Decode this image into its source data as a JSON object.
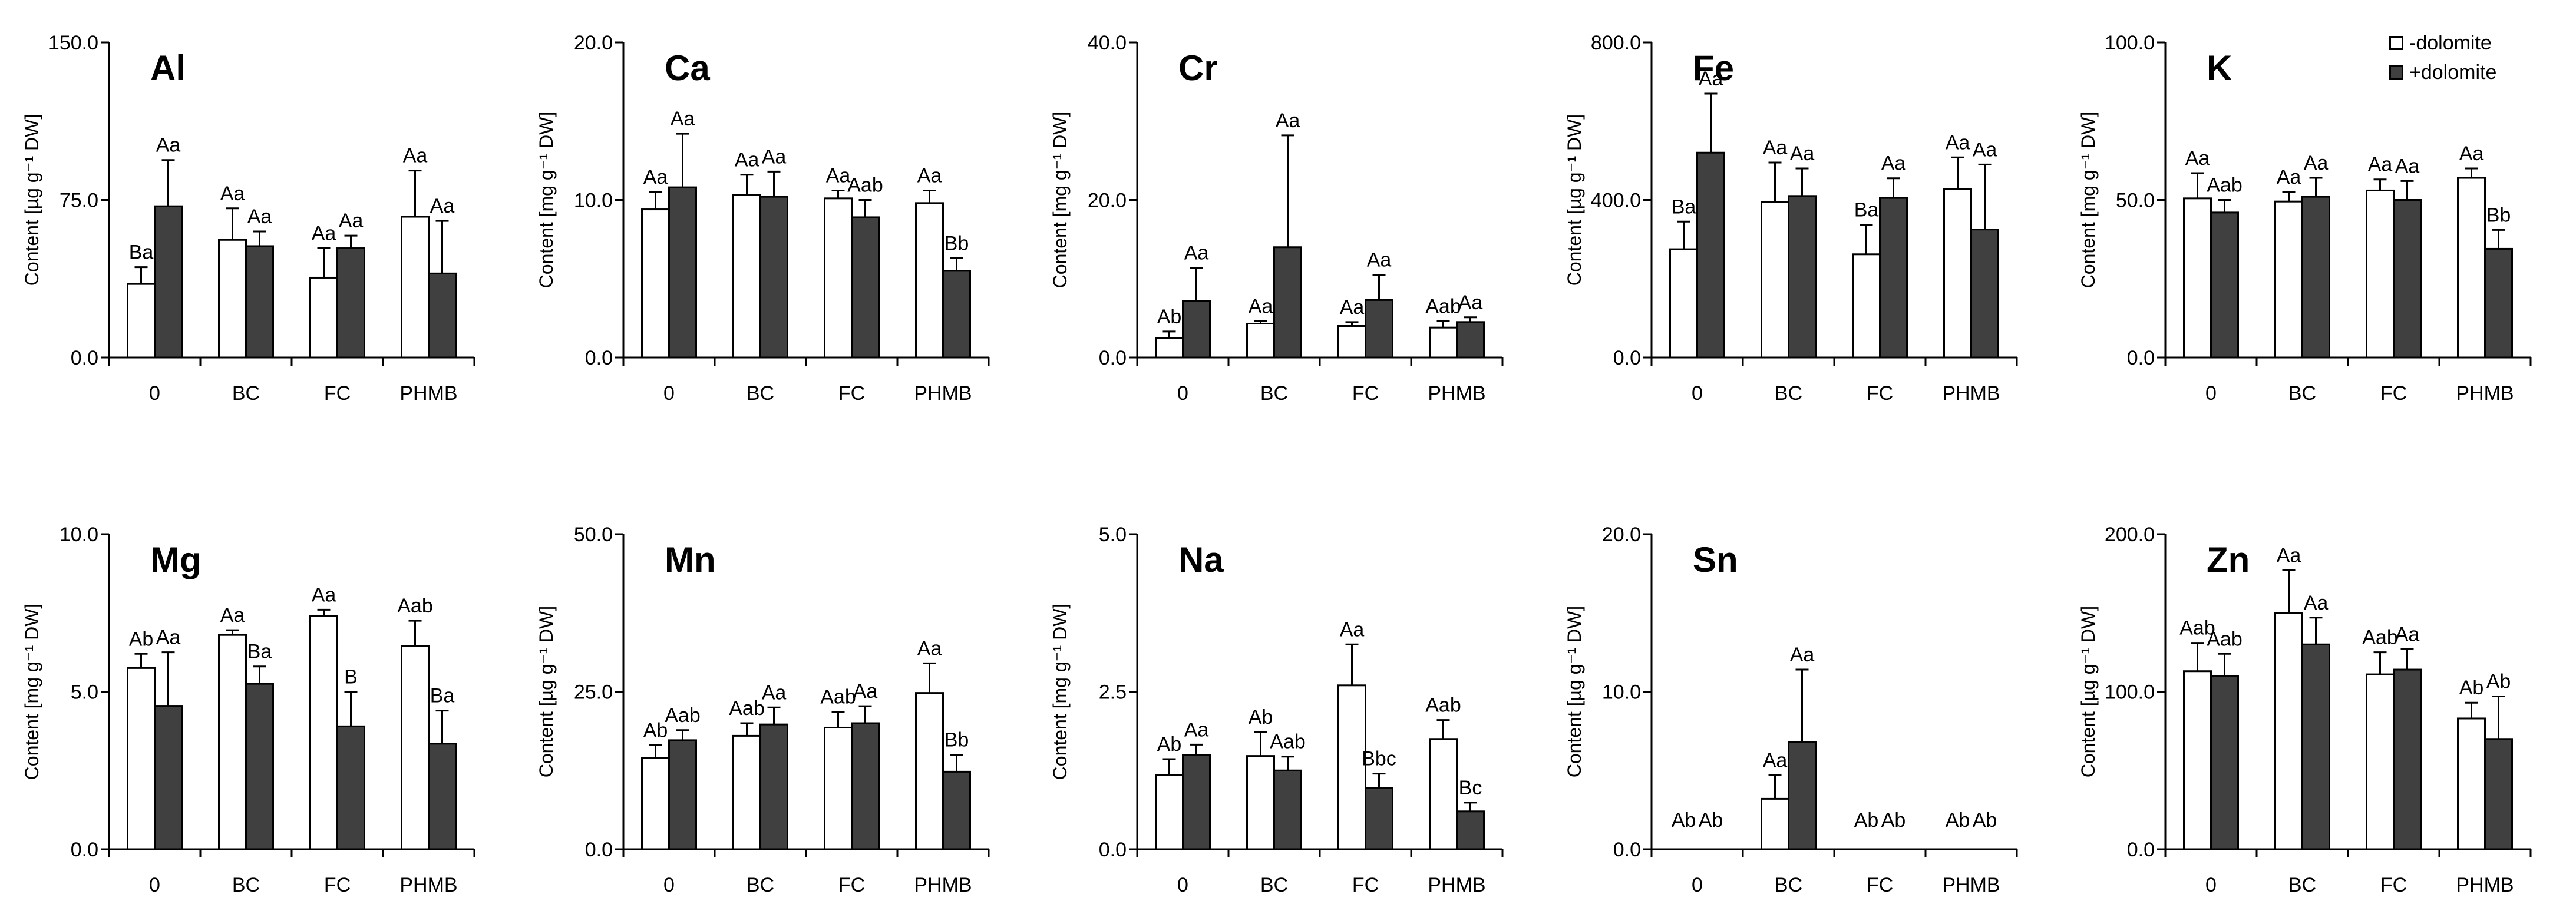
{
  "legend": [
    {
      "label": "-dolomite",
      "color": "#ffffff"
    },
    {
      "label": "+dolomite",
      "color": "#404040"
    }
  ],
  "colors": {
    "minus": "#ffffff",
    "plus": "#404040",
    "axis": "#000000"
  },
  "chart_data": [
    {
      "type": "bar",
      "title": "Al",
      "ylabel": "Content [µg g⁻¹ DW]",
      "ylim": [
        0,
        150
      ],
      "yticks": [
        "0.0",
        "75.0",
        "150.0"
      ],
      "categories": [
        "0",
        "BC",
        "FC",
        "PHMB"
      ],
      "series": [
        {
          "name": "-dolomite",
          "values": [
            35,
            56,
            38,
            67
          ],
          "errors": [
            8,
            15,
            14,
            22
          ],
          "letters": [
            "Ba",
            "Aa",
            "Aa",
            "Aa"
          ]
        },
        {
          "name": "+dolomite",
          "values": [
            72,
            53,
            52,
            40
          ],
          "errors": [
            22,
            7,
            6,
            25
          ],
          "letters": [
            "Aa",
            "Aa",
            "Aa",
            "Aa"
          ]
        }
      ]
    },
    {
      "type": "bar",
      "title": "Ca",
      "ylabel": "Content [mg g⁻¹ DW]",
      "ylim": [
        0,
        20
      ],
      "yticks": [
        "0.0",
        "10.0",
        "20.0"
      ],
      "categories": [
        "0",
        "BC",
        "FC",
        "PHMB"
      ],
      "series": [
        {
          "name": "-dolomite",
          "values": [
            9.4,
            10.3,
            10.1,
            9.8
          ],
          "errors": [
            1.1,
            1.3,
            0.5,
            0.8
          ],
          "letters": [
            "Aa",
            "Aa",
            "Aa",
            "Aa"
          ]
        },
        {
          "name": "+dolomite",
          "values": [
            10.8,
            10.2,
            8.9,
            5.5
          ],
          "errors": [
            3.4,
            1.6,
            1.1,
            0.8
          ],
          "letters": [
            "Aa",
            "Aa",
            "Aab",
            "Bb"
          ]
        }
      ]
    },
    {
      "type": "bar",
      "title": "Cr",
      "ylabel": "Content [mg g⁻¹ DW]",
      "ylim": [
        0,
        40
      ],
      "yticks": [
        "0.0",
        "20.0",
        "40.0"
      ],
      "categories": [
        "0",
        "BC",
        "FC",
        "PHMB"
      ],
      "series": [
        {
          "name": "-dolomite",
          "values": [
            2.5,
            4.3,
            4.0,
            3.8
          ],
          "errors": [
            0.8,
            0.3,
            0.5,
            0.8
          ],
          "letters": [
            "Ab",
            "Aa",
            "Aa",
            "Aab"
          ]
        },
        {
          "name": "+dolomite",
          "values": [
            7.2,
            14.0,
            7.3,
            4.5
          ],
          "errors": [
            4.2,
            14.2,
            3.2,
            0.6
          ],
          "letters": [
            "Aa",
            "Aa",
            "Aa",
            "Aa"
          ]
        }
      ]
    },
    {
      "type": "bar",
      "title": "Fe",
      "ylabel": "Content [µg g⁻¹ DW]",
      "ylim": [
        0,
        800
      ],
      "yticks": [
        "0.0",
        "400.0",
        "800.0"
      ],
      "categories": [
        "0",
        "BC",
        "FC",
        "PHMB"
      ],
      "series": [
        {
          "name": "-dolomite",
          "values": [
            275,
            395,
            262,
            428
          ],
          "errors": [
            70,
            100,
            75,
            80
          ],
          "letters": [
            "Ba",
            "Aa",
            "Ba",
            "Aa"
          ]
        },
        {
          "name": "+dolomite",
          "values": [
            520,
            410,
            405,
            325
          ],
          "errors": [
            150,
            70,
            50,
            165
          ],
          "letters": [
            "Aa",
            "Aa",
            "Aa",
            "Aa"
          ]
        }
      ]
    },
    {
      "type": "bar",
      "title": "K",
      "ylabel": "Content [mg g⁻¹ DW]",
      "ylim": [
        0,
        100
      ],
      "yticks": [
        "0.0",
        "50.0",
        "100.0"
      ],
      "categories": [
        "0",
        "BC",
        "FC",
        "PHMB"
      ],
      "series": [
        {
          "name": "-dolomite",
          "values": [
            50.5,
            49.5,
            53,
            57
          ],
          "errors": [
            8,
            3,
            3.5,
            3
          ],
          "letters": [
            "Aa",
            "Aa",
            "Aa",
            "Aa"
          ]
        },
        {
          "name": "+dolomite",
          "values": [
            46,
            51,
            50,
            34.5
          ],
          "errors": [
            4,
            6,
            6,
            6
          ],
          "letters": [
            "Aab",
            "Aa",
            "Aa",
            "Bb"
          ]
        }
      ]
    },
    {
      "type": "bar",
      "title": "Mg",
      "ylabel": "Content [mg g⁻¹ DW]",
      "ylim": [
        0,
        10
      ],
      "yticks": [
        "0.0",
        "5.0",
        "10.0"
      ],
      "categories": [
        "0",
        "BC",
        "FC",
        "PHMB"
      ],
      "series": [
        {
          "name": "-dolomite",
          "values": [
            5.75,
            6.8,
            7.4,
            6.45
          ],
          "errors": [
            0.45,
            0.15,
            0.2,
            0.8
          ],
          "letters": [
            "Ab",
            "Aa",
            "Aa",
            "Aab"
          ]
        },
        {
          "name": "+dolomite",
          "values": [
            4.55,
            5.25,
            3.9,
            3.35
          ],
          "errors": [
            1.7,
            0.55,
            1.1,
            1.05
          ],
          "letters": [
            "Aa",
            "Ba",
            "B",
            "Ba"
          ]
        }
      ]
    },
    {
      "type": "bar",
      "title": "Mn",
      "ylabel": "Content [µg g⁻¹ DW]",
      "ylim": [
        0,
        50
      ],
      "yticks": [
        "0.0",
        "25.0",
        "50.0"
      ],
      "categories": [
        "0",
        "BC",
        "FC",
        "PHMB"
      ],
      "series": [
        {
          "name": "-dolomite",
          "values": [
            14.5,
            18,
            19.3,
            24.8
          ],
          "errors": [
            2,
            2,
            2.5,
            4.7
          ],
          "letters": [
            "Ab",
            "Aab",
            "Aab",
            "Aa"
          ]
        },
        {
          "name": "+dolomite",
          "values": [
            17.3,
            19.8,
            20,
            12.3
          ],
          "errors": [
            1.6,
            2.7,
            2.7,
            2.7
          ],
          "letters": [
            "Aab",
            "Aa",
            "Aa",
            "Bb"
          ]
        }
      ]
    },
    {
      "type": "bar",
      "title": "Na",
      "ylabel": "Content [mg g⁻¹ DW]",
      "ylim": [
        0,
        5
      ],
      "yticks": [
        "0.0",
        "2.5",
        "5.0"
      ],
      "categories": [
        "0",
        "BC",
        "FC",
        "PHMB"
      ],
      "series": [
        {
          "name": "-dolomite",
          "values": [
            1.18,
            1.48,
            2.6,
            1.75
          ],
          "errors": [
            0.25,
            0.38,
            0.65,
            0.3
          ],
          "letters": [
            "Ab",
            "Ab",
            "Aa",
            "Aab"
          ]
        },
        {
          "name": "+dolomite",
          "values": [
            1.5,
            1.25,
            0.97,
            0.6
          ],
          "errors": [
            0.16,
            0.22,
            0.23,
            0.14
          ],
          "letters": [
            "Aa",
            "Aab",
            "Bbc",
            "Bc"
          ]
        }
      ]
    },
    {
      "type": "bar",
      "title": "Sn",
      "ylabel": "Content [µg g⁻¹ DW]",
      "ylim": [
        0,
        20
      ],
      "yticks": [
        "0.0",
        "10.0",
        "20.0"
      ],
      "categories": [
        "0",
        "BC",
        "FC",
        "PHMB"
      ],
      "series": [
        {
          "name": "-dolomite",
          "values": [
            0,
            3.2,
            0,
            0
          ],
          "errors": [
            0,
            1.5,
            0,
            0
          ],
          "letters": [
            "Ab",
            "Aa",
            "Ab",
            "Ab"
          ]
        },
        {
          "name": "+dolomite",
          "values": [
            0,
            6.8,
            0,
            0
          ],
          "errors": [
            0,
            4.6,
            0,
            0
          ],
          "letters": [
            "Ab",
            "Aa",
            "Ab",
            "Ab"
          ]
        }
      ]
    },
    {
      "type": "bar",
      "title": "Zn",
      "ylabel": "Content [µg g⁻¹ DW]",
      "ylim": [
        0,
        200
      ],
      "yticks": [
        "0.0",
        "100.0",
        "200.0"
      ],
      "categories": [
        "0",
        "BC",
        "FC",
        "PHMB"
      ],
      "series": [
        {
          "name": "-dolomite",
          "values": [
            113,
            150,
            111,
            83
          ],
          "errors": [
            18,
            27,
            14,
            10
          ],
          "letters": [
            "Aab",
            "Aa",
            "Aab",
            "Ab"
          ]
        },
        {
          "name": "+dolomite",
          "values": [
            110,
            130,
            114,
            70
          ],
          "errors": [
            14,
            17,
            13,
            27
          ],
          "letters": [
            "Aab",
            "Aa",
            "Aa",
            "Ab"
          ]
        }
      ]
    }
  ]
}
